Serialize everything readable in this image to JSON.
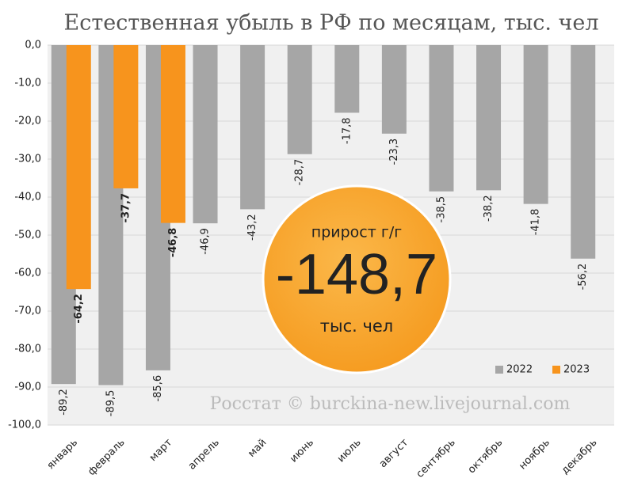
{
  "chart_data": {
    "type": "bar",
    "title": "Естественная убыль в РФ по месяцам, тыс. чел",
    "categories": [
      "январь",
      "февраль",
      "март",
      "апрель",
      "май",
      "июнь",
      "июль",
      "август",
      "сентябрь",
      "октябрь",
      "ноябрь",
      "декабрь"
    ],
    "series": [
      {
        "name": "2022",
        "color": "#a6a6a6",
        "values": [
          -89.2,
          -89.5,
          -85.6,
          -46.9,
          -43.2,
          -28.7,
          -17.8,
          -23.3,
          -38.5,
          -38.2,
          -41.8,
          -56.2
        ],
        "value_labels": [
          "-89,2",
          "-89,5",
          "-85,6",
          "-46,9",
          "-43,2",
          "-28,7",
          "-17,8",
          "-23,3",
          "-38,5",
          "-38,2",
          "-41,8",
          "-56,2"
        ]
      },
      {
        "name": "2023",
        "color": "#f7941d",
        "values": [
          -64.2,
          -37.7,
          -46.8,
          null,
          null,
          null,
          null,
          null,
          null,
          null,
          null,
          null
        ],
        "value_labels": [
          "-64,2",
          "-37,7",
          "-46,8",
          null,
          null,
          null,
          null,
          null,
          null,
          null,
          null,
          null
        ]
      }
    ],
    "ylim": [
      -100,
      0
    ],
    "yticks": [
      {
        "value": 0,
        "label": "0,0"
      },
      {
        "value": -10,
        "label": "-10,0"
      },
      {
        "value": -20,
        "label": "-20,0"
      },
      {
        "value": -30,
        "label": "-30,0"
      },
      {
        "value": -40,
        "label": "-40,0"
      },
      {
        "value": -50,
        "label": "-50,0"
      },
      {
        "value": -60,
        "label": "-60,0"
      },
      {
        "value": -70,
        "label": "-70,0"
      },
      {
        "value": -80,
        "label": "-80,0"
      },
      {
        "value": -90,
        "label": "-90,0"
      },
      {
        "value": -100,
        "label": "-100,0"
      }
    ],
    "grid": true,
    "legend": "lower right",
    "annotation": {
      "caption": "прирост г/г",
      "value": "-148,7",
      "unit": "тыс. чел"
    },
    "source": "Росстат © burckina-new.livejournal.com"
  }
}
